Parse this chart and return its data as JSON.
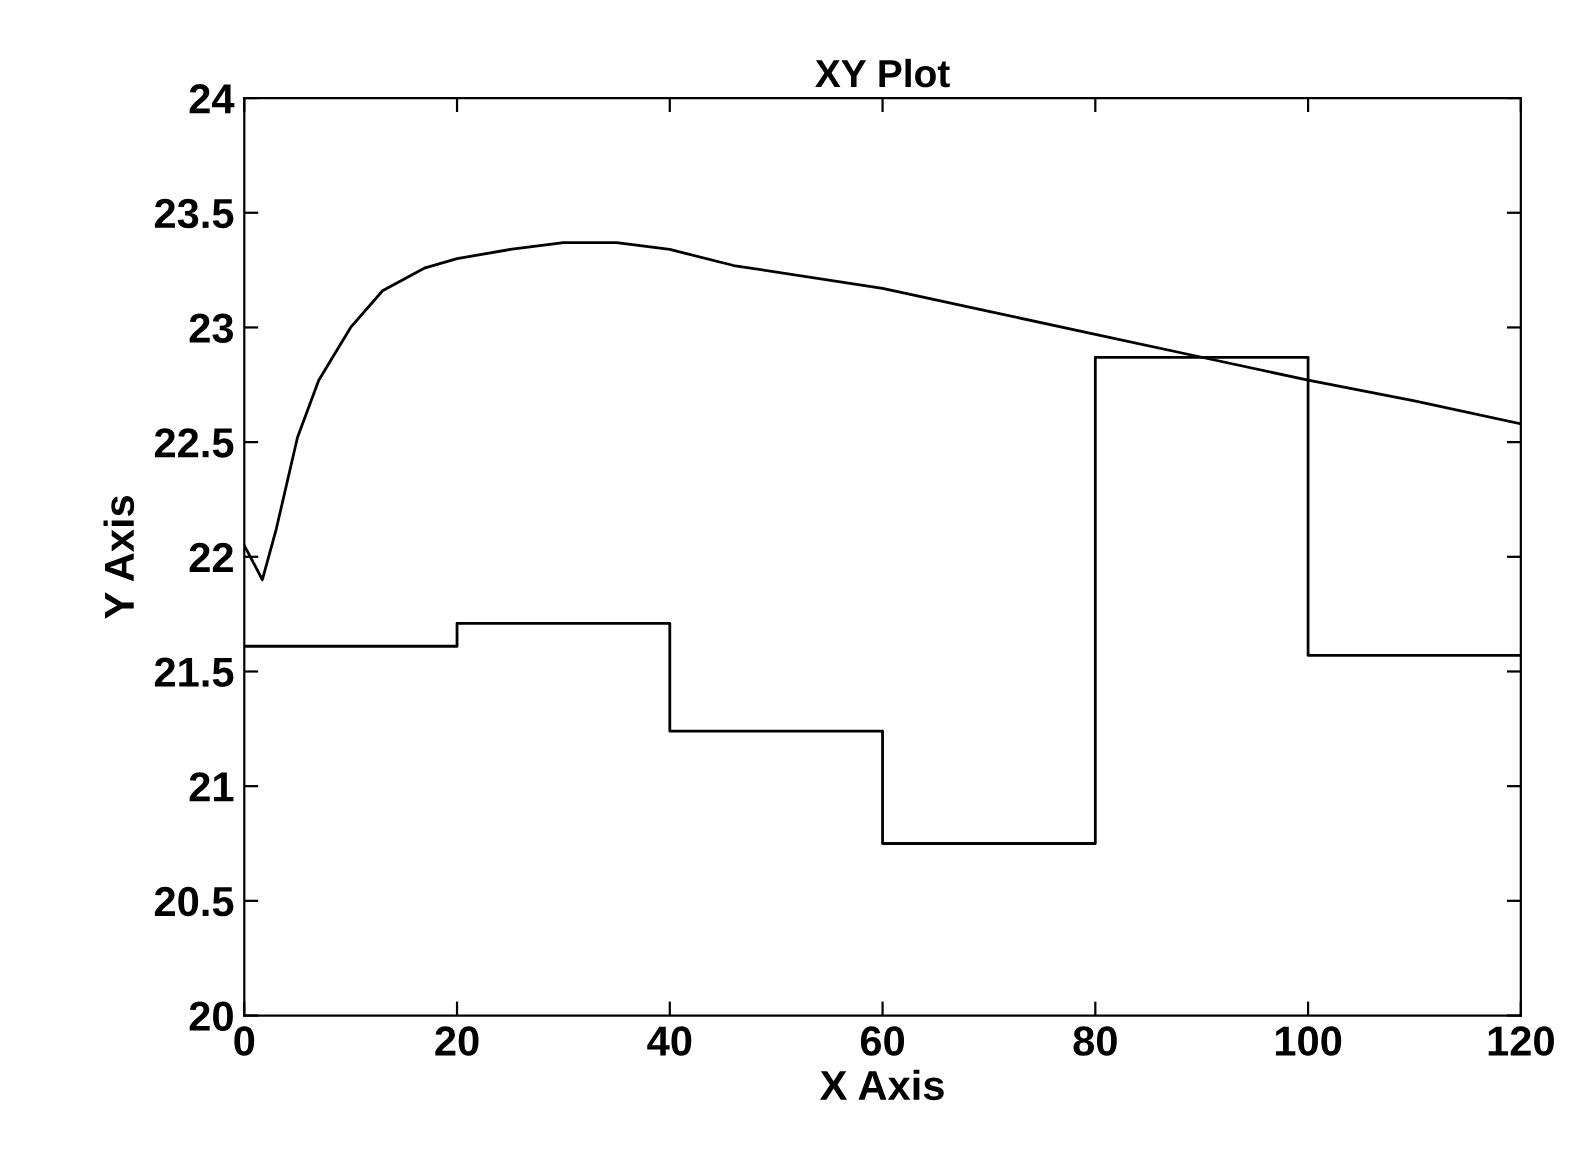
{
  "chart_data": {
    "type": "line",
    "title": "XY Plot",
    "xlabel": "X Axis",
    "ylabel": "Y Axis",
    "xlim": [
      0,
      120
    ],
    "xticks": [
      0,
      20,
      40,
      60,
      80,
      100,
      120
    ],
    "ylim": [
      20,
      24
    ],
    "yticks": [
      20,
      20.5,
      21,
      21.5,
      22,
      22.5,
      23,
      23.5,
      24
    ],
    "grid": false,
    "legend": false,
    "series": [
      {
        "color": "#000000",
        "x": [
          0,
          1.7,
          3,
          5,
          7,
          10,
          13,
          17,
          20,
          25,
          30,
          35,
          40,
          46,
          60,
          70,
          80,
          90,
          100,
          110,
          120
        ],
        "values": [
          22.05,
          21.9,
          22.12,
          22.52,
          22.77,
          23.0,
          23.16,
          23.26,
          23.3,
          23.34,
          23.37,
          23.37,
          23.34,
          23.27,
          23.17,
          23.07,
          22.97,
          22.87,
          22.77,
          22.68,
          22.58
        ]
      },
      {
        "type": "step",
        "color": "#000000",
        "x": [
          0,
          20,
          40,
          60,
          80,
          100,
          120
        ],
        "values": [
          21.61,
          21.71,
          21.24,
          20.75,
          22.87,
          21.57,
          21.57
        ]
      }
    ]
  }
}
